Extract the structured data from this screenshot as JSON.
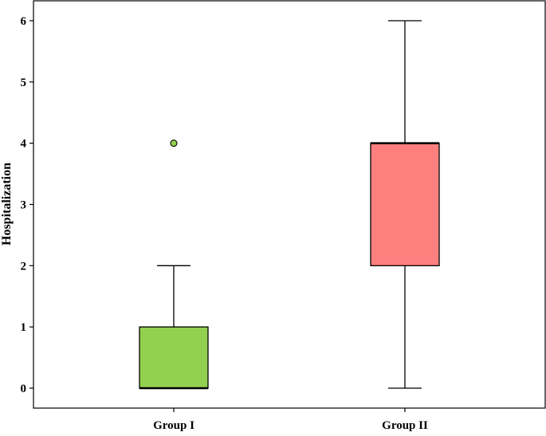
{
  "chart_data": {
    "type": "box",
    "title": "",
    "xlabel": "",
    "ylabel": "Hospitalization",
    "ylim": [
      -0.35,
      6.3
    ],
    "yticks": [
      0,
      1,
      2,
      3,
      4,
      5,
      6
    ],
    "grid": false,
    "categories": [
      "Group I",
      "Group II"
    ],
    "series": [
      {
        "category": "Group I",
        "whisker_low": 0,
        "q1": 0,
        "median": 0,
        "q3": 1,
        "whisker_high": 2,
        "outliers": [
          4
        ],
        "color": "#92d050"
      },
      {
        "category": "Group II",
        "whisker_low": 0,
        "q1": 2,
        "median": 4,
        "q3": 4,
        "whisker_high": 6,
        "outliers": [],
        "color": "#ff7f7f"
      }
    ]
  }
}
